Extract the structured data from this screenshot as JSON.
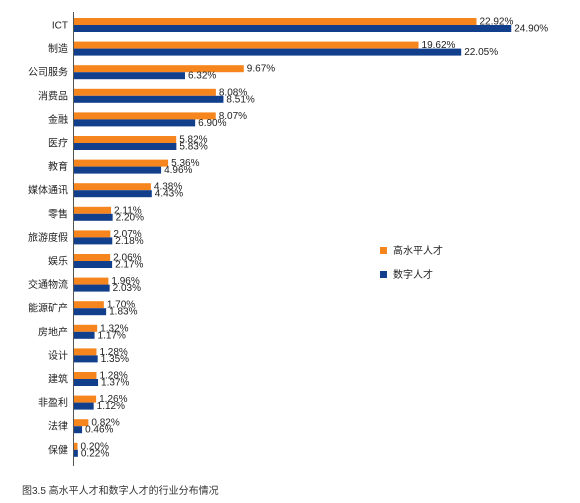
{
  "chart_data": {
    "type": "bar",
    "orientation": "horizontal",
    "categories": [
      "ICT",
      "制造",
      "公司服务",
      "消费品",
      "金融",
      "医疗",
      "教育",
      "媒体通讯",
      "零售",
      "旅游度假",
      "娱乐",
      "交通物流",
      "能源矿产",
      "房地产",
      "设计",
      "建筑",
      "非盈利",
      "法律",
      "保健"
    ],
    "series": [
      {
        "name": "高水平人才",
        "color": "#F7851E",
        "values": [
          22.92,
          19.62,
          9.67,
          8.08,
          8.07,
          5.82,
          5.36,
          4.38,
          2.11,
          2.07,
          2.06,
          1.96,
          1.7,
          1.32,
          1.28,
          1.28,
          1.26,
          0.82,
          0.2
        ],
        "labels": [
          "22.92%",
          "19.62%",
          "9.67%",
          "8.08%",
          "8.07%",
          "5.82%",
          "5.36%",
          "4.38%",
          "2.11%",
          "2.07%",
          "2.06%",
          "1.96%",
          "1.70%",
          "1.32%",
          "1.28%",
          "1.28%",
          "1.26%",
          "0.82%",
          "0.20%"
        ]
      },
      {
        "name": "数字人才",
        "color": "#123F8C",
        "values": [
          24.9,
          22.05,
          6.32,
          8.51,
          6.9,
          5.83,
          4.96,
          4.43,
          2.2,
          2.18,
          2.17,
          2.03,
          1.83,
          1.17,
          1.35,
          1.37,
          1.12,
          0.46,
          0.22
        ],
        "labels": [
          "24.90%",
          "22.05%",
          "6.32%",
          "8.51%",
          "6.90%",
          "5.83%",
          "4.96%",
          "4.43%",
          "2.20%",
          "2.18%",
          "2.17%",
          "2.03%",
          "1.83%",
          "1.17%",
          "1.35%",
          "1.37%",
          "1.12%",
          "0.46%",
          "0.22%"
        ]
      }
    ],
    "xlim": [
      0,
      25
    ],
    "grid": false,
    "legend_placement": "right",
    "caption": "图3.5 高水平人才和数字人才的行业分布情况"
  }
}
